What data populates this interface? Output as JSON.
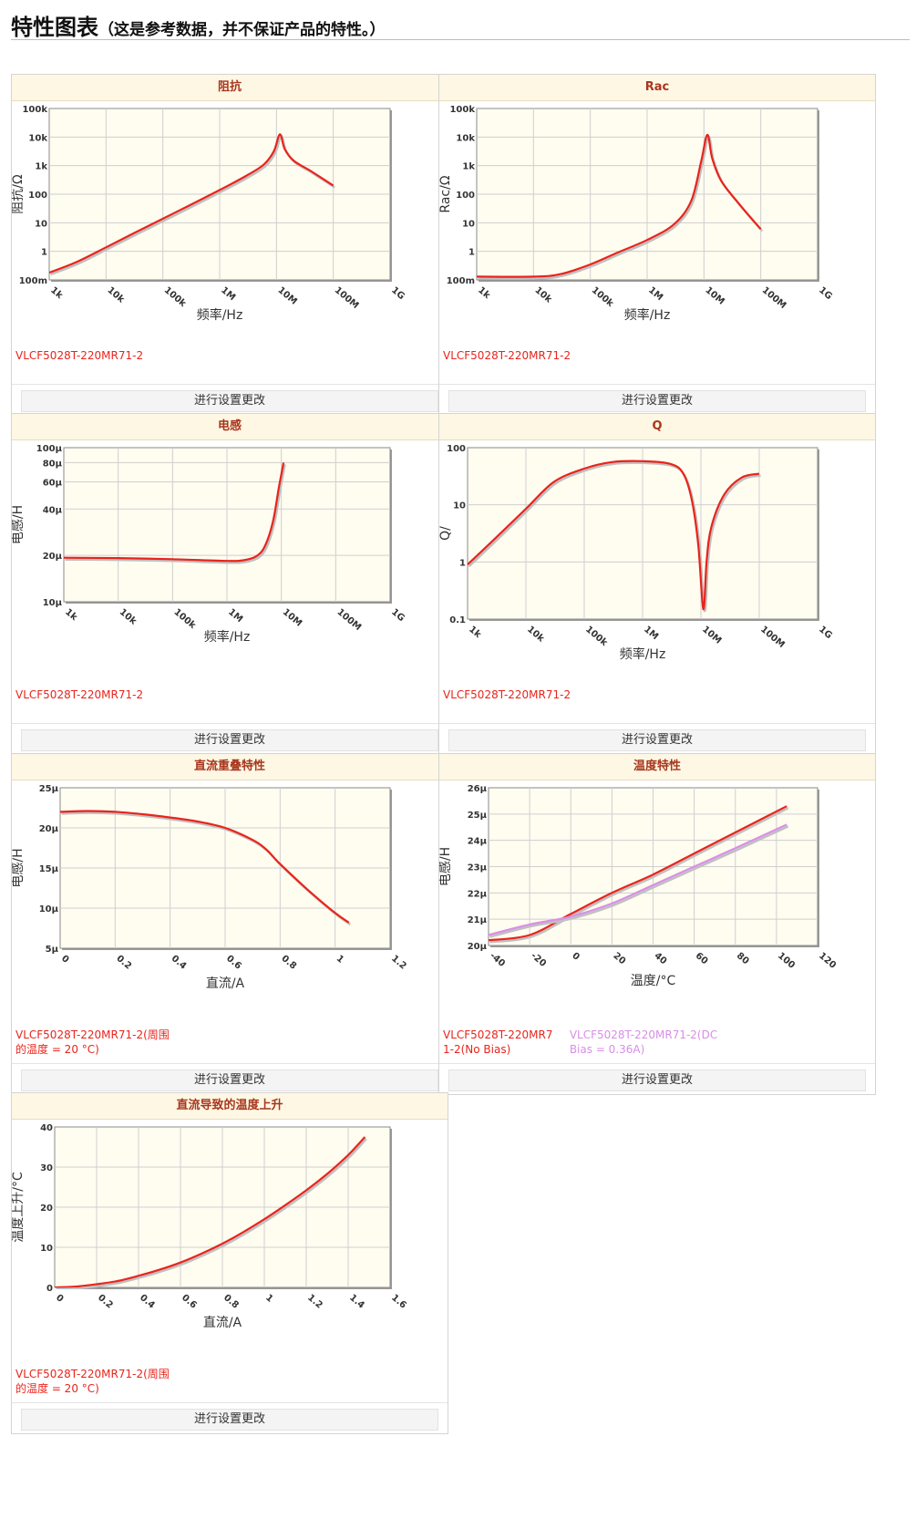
{
  "header": {
    "title": "特性图表",
    "subtitle": "（这是参考数据，并不保证产品的特性。）"
  },
  "button_label": "进行设置更改",
  "colors": {
    "series_main": "#e8241c",
    "series_dc_bias": "#d98ee8",
    "plot_bg": "#fffcf0",
    "grid": "#cfcfcf",
    "header_bg": "#fdf7e4",
    "header_text": "#a8361d"
  },
  "chart_data": [
    {
      "type": "line",
      "title": "阻抗",
      "xlabel": "频率/Hz",
      "ylabel": "阻抗/Ω",
      "x_scale": "log",
      "y_scale": "log",
      "xlim": [
        1000,
        1000000000
      ],
      "ylim": [
        0.1,
        100000
      ],
      "x_ticks": [
        1000,
        10000,
        100000,
        1000000,
        10000000,
        100000000,
        1000000000
      ],
      "x_tick_labels": [
        "1k",
        "10k",
        "100k",
        "1M",
        "10M",
        "100M",
        "1G"
      ],
      "y_ticks": [
        0.1,
        1,
        10,
        100,
        1000,
        10000,
        100000
      ],
      "y_tick_labels": [
        "100m",
        "1",
        "10",
        "100",
        "1k",
        "10k",
        "100k"
      ],
      "grid": true,
      "series": [
        {
          "name": "VLCF5028T-220MR71-2",
          "x": [
            1000,
            3000,
            10000,
            30000,
            100000,
            300000,
            1000000,
            3000000,
            6000000,
            9000000,
            11500000,
            14000000,
            20000000,
            40000000,
            100000000
          ],
          "y": [
            0.18,
            0.42,
            1.38,
            4.2,
            13.9,
            41.5,
            140,
            450,
            1100,
            3200,
            12500,
            3800,
            1500,
            650,
            200
          ]
        }
      ]
    },
    {
      "type": "line",
      "title": "Rac",
      "xlabel": "频率/Hz",
      "ylabel": "Rac/Ω",
      "x_scale": "log",
      "y_scale": "log",
      "xlim": [
        1000,
        1000000000
      ],
      "ylim": [
        0.1,
        100000
      ],
      "x_ticks": [
        1000,
        10000,
        100000,
        1000000,
        10000000,
        100000000,
        1000000000
      ],
      "x_tick_labels": [
        "1k",
        "10k",
        "100k",
        "1M",
        "10M",
        "100M",
        "1G"
      ],
      "y_ticks": [
        0.1,
        1,
        10,
        100,
        1000,
        10000,
        100000
      ],
      "y_tick_labels": [
        "100m",
        "1",
        "10",
        "100",
        "1k",
        "10k",
        "100k"
      ],
      "grid": true,
      "series": [
        {
          "name": "VLCF5028T-220MR71-2",
          "x": [
            1000,
            10000,
            30000,
            100000,
            300000,
            1000000,
            3000000,
            6000000,
            9000000,
            11500000,
            14000000,
            20000000,
            40000000,
            100000000
          ],
          "y": [
            0.13,
            0.13,
            0.16,
            0.35,
            0.9,
            2.5,
            9,
            60,
            1500,
            12000,
            1800,
            300,
            50,
            6
          ]
        }
      ]
    },
    {
      "type": "line",
      "title": "电感",
      "xlabel": "频率/Hz",
      "ylabel": "电感/H",
      "x_scale": "log",
      "y_scale": "log",
      "xlim": [
        1000,
        1000000000
      ],
      "ylim": [
        10,
        100
      ],
      "x_ticks": [
        1000,
        10000,
        100000,
        1000000,
        10000000,
        100000000,
        1000000000
      ],
      "x_tick_labels": [
        "1k",
        "10k",
        "100k",
        "1M",
        "10M",
        "100M",
        "1G"
      ],
      "y_ticks": [
        10,
        20,
        40,
        60,
        80,
        100
      ],
      "y_tick_labels": [
        "10μ",
        "20μ",
        "40μ",
        "60μ",
        "80μ",
        "100μ"
      ],
      "grid": true,
      "series": [
        {
          "name": "VLCF5028T-220MR71-2",
          "x": [
            1000,
            10000,
            100000,
            1000000,
            2000000,
            3500000,
            5000000,
            7000000,
            9000000,
            11000000
          ],
          "y": [
            19.3,
            19.2,
            18.9,
            18.4,
            18.6,
            19.8,
            23,
            33,
            55,
            80
          ]
        }
      ]
    },
    {
      "type": "line",
      "title": "Q",
      "xlabel": "频率/Hz",
      "ylabel": "Q/",
      "x_scale": "log",
      "y_scale": "log",
      "xlim": [
        1000,
        1000000000
      ],
      "ylim": [
        0.1,
        100
      ],
      "x_ticks": [
        1000,
        10000,
        100000,
        1000000,
        10000000,
        100000000,
        1000000000
      ],
      "x_tick_labels": [
        "1k",
        "10k",
        "100k",
        "1M",
        "10M",
        "100M",
        "1G"
      ],
      "y_ticks": [
        0.1,
        1,
        10,
        100
      ],
      "y_tick_labels": [
        "0.1",
        "1",
        "10",
        "100"
      ],
      "grid": true,
      "series": [
        {
          "name": "VLCF5028T-220MR71-2",
          "x": [
            1000,
            3000,
            10000,
            30000,
            100000,
            300000,
            1000000,
            3000000,
            5000000,
            7000000,
            9000000,
            11000000,
            12500000,
            15000000,
            25000000,
            50000000,
            100000000
          ],
          "y": [
            0.9,
            2.6,
            8.5,
            25,
            43,
            56,
            58,
            52,
            35,
            12,
            2,
            0.15,
            1,
            4,
            15,
            30,
            35
          ]
        }
      ]
    },
    {
      "type": "line",
      "title": "直流重叠特性",
      "xlabel": "直流/A",
      "ylabel": "电感/H",
      "xlim": [
        0,
        1.2
      ],
      "ylim": [
        5,
        25
      ],
      "x_ticks": [
        0,
        0.2,
        0.4,
        0.6,
        0.8,
        1.0,
        1.2
      ],
      "x_tick_labels": [
        "0",
        "0.2",
        "0.4",
        "0.6",
        "0.8",
        "1",
        "1.2"
      ],
      "y_ticks": [
        5,
        10,
        15,
        20,
        25
      ],
      "y_tick_labels": [
        "5μ",
        "10μ",
        "15μ",
        "20μ",
        "25μ"
      ],
      "grid": true,
      "series": [
        {
          "name": "VLCF5028T-220MR71-2(周围的温度 = 20 °C)",
          "x": [
            0,
            0.1,
            0.2,
            0.3,
            0.4,
            0.5,
            0.6,
            0.7,
            0.75,
            0.8,
            0.9,
            1.0,
            1.05
          ],
          "y": [
            22.0,
            22.1,
            22.0,
            21.7,
            21.3,
            20.8,
            20.0,
            18.5,
            17.3,
            15.5,
            12.3,
            9.4,
            8.2
          ]
        }
      ],
      "legend": [
        "VLCF5028T-220MR71-2(周围",
        "的温度 = 20 °C)"
      ]
    },
    {
      "type": "line",
      "title": "温度特性",
      "xlabel": "温度/°C",
      "ylabel": "电感/H",
      "xlim": [
        -40,
        120
      ],
      "ylim": [
        20,
        26
      ],
      "x_ticks": [
        -40,
        -20,
        0,
        20,
        40,
        60,
        80,
        100,
        120
      ],
      "x_tick_labels": [
        "-40",
        "-20",
        "0",
        "20",
        "40",
        "60",
        "80",
        "100",
        "120"
      ],
      "y_ticks": [
        20,
        21,
        22,
        23,
        24,
        25,
        26
      ],
      "y_tick_labels": [
        "20μ",
        "21μ",
        "22μ",
        "23μ",
        "24μ",
        "25μ",
        "26μ"
      ],
      "grid": true,
      "series": [
        {
          "name": "VLCF5028T-220MR71-2(No Bias)",
          "color": "#e8241c",
          "x": [
            -40,
            -20,
            0,
            20,
            40,
            60,
            80,
            105
          ],
          "y": [
            20.2,
            20.4,
            21.2,
            22.0,
            22.7,
            23.5,
            24.3,
            25.3
          ]
        },
        {
          "name": "VLCF5028T-220MR71-2(DC Bias = 0.36A)",
          "color": "#d98ee8",
          "x": [
            -40,
            -20,
            0,
            20,
            40,
            60,
            80,
            105
          ],
          "y": [
            20.4,
            20.8,
            21.1,
            21.6,
            22.3,
            23.0,
            23.7,
            24.6
          ]
        }
      ],
      "legend": [
        "VLCF5028T-220MR71-2(No Bias)",
        "VLCF5028T-220MR71-2(DC Bias = 0.36A)"
      ]
    },
    {
      "type": "line",
      "title": "直流导致的温度上升",
      "xlabel": "直流/A",
      "ylabel": "温度上升/°C",
      "xlim": [
        0,
        1.6
      ],
      "ylim": [
        0,
        40
      ],
      "x_ticks": [
        0,
        0.2,
        0.4,
        0.6,
        0.8,
        1.0,
        1.2,
        1.4,
        1.6
      ],
      "x_tick_labels": [
        "0",
        "0.2",
        "0.4",
        "0.6",
        "0.8",
        "1",
        "1.2",
        "1.4",
        "1.6"
      ],
      "y_ticks": [
        0,
        10,
        20,
        30,
        40
      ],
      "y_tick_labels": [
        "0",
        "10",
        "20",
        "30",
        "40"
      ],
      "grid": true,
      "series": [
        {
          "name": "VLCF5028T-220MR71-2(周围的温度 = 20 °C)",
          "x": [
            0,
            0.1,
            0.2,
            0.3,
            0.4,
            0.5,
            0.6,
            0.7,
            0.8,
            0.9,
            1.0,
            1.1,
            1.2,
            1.3,
            1.4,
            1.48
          ],
          "y": [
            0,
            0.2,
            0.8,
            1.6,
            2.9,
            4.4,
            6.2,
            8.4,
            10.9,
            13.8,
            17.0,
            20.5,
            24.2,
            28.3,
            33.0,
            37.5
          ]
        }
      ],
      "legend": [
        "VLCF5028T-220MR71-2(周围",
        "的温度 = 20 °C)"
      ]
    }
  ]
}
